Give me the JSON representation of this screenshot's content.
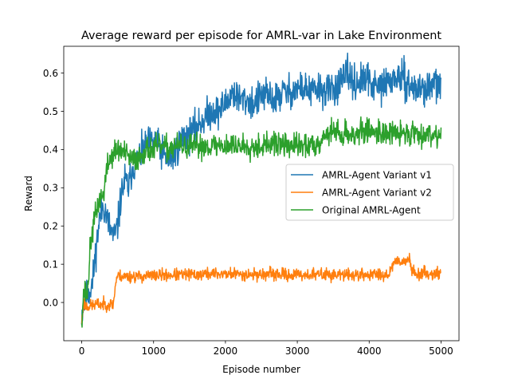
{
  "chart_data": {
    "type": "line",
    "title": "Average reward per episode for AMRL-var in Lake Environment",
    "xlabel": "Episode number",
    "ylabel": "Reward",
    "xlim": [
      -250,
      5250
    ],
    "ylim": [
      -0.1,
      0.67
    ],
    "xticks": [
      0,
      1000,
      2000,
      3000,
      4000,
      5000
    ],
    "yticks": [
      0.0,
      0.1,
      0.2,
      0.3,
      0.4,
      0.5,
      0.6
    ],
    "ytick_labels": [
      "0.0",
      "0.1",
      "0.2",
      "0.3",
      "0.4",
      "0.5",
      "0.6"
    ],
    "grid": false,
    "legend_position": "center-right",
    "series": [
      {
        "name": "AMRL-Agent Variant v1",
        "color": "#1f77b4",
        "noise": 0.022,
        "seed": 11,
        "points": [
          [
            0,
            -0.03
          ],
          [
            50,
            0.01
          ],
          [
            100,
            0.03
          ],
          [
            150,
            0.05
          ],
          [
            200,
            0.14
          ],
          [
            250,
            0.22
          ],
          [
            300,
            0.26
          ],
          [
            350,
            0.22
          ],
          [
            400,
            0.19
          ],
          [
            450,
            0.17
          ],
          [
            500,
            0.2
          ],
          [
            550,
            0.28
          ],
          [
            600,
            0.32
          ],
          [
            650,
            0.3
          ],
          [
            700,
            0.35
          ],
          [
            800,
            0.38
          ],
          [
            900,
            0.41
          ],
          [
            1000,
            0.42
          ],
          [
            1100,
            0.4
          ],
          [
            1200,
            0.37
          ],
          [
            1300,
            0.39
          ],
          [
            1400,
            0.43
          ],
          [
            1500,
            0.44
          ],
          [
            1600,
            0.46
          ],
          [
            1700,
            0.48
          ],
          [
            1800,
            0.5
          ],
          [
            1900,
            0.5
          ],
          [
            2000,
            0.52
          ],
          [
            2100,
            0.55
          ],
          [
            2200,
            0.53
          ],
          [
            2300,
            0.53
          ],
          [
            2400,
            0.52
          ],
          [
            2500,
            0.54
          ],
          [
            2600,
            0.54
          ],
          [
            2700,
            0.53
          ],
          [
            2800,
            0.55
          ],
          [
            2900,
            0.55
          ],
          [
            3000,
            0.56
          ],
          [
            3100,
            0.56
          ],
          [
            3200,
            0.55
          ],
          [
            3300,
            0.56
          ],
          [
            3400,
            0.55
          ],
          [
            3500,
            0.56
          ],
          [
            3600,
            0.57
          ],
          [
            3700,
            0.6
          ],
          [
            3800,
            0.57
          ],
          [
            3900,
            0.58
          ],
          [
            4000,
            0.58
          ],
          [
            4100,
            0.56
          ],
          [
            4200,
            0.57
          ],
          [
            4300,
            0.58
          ],
          [
            4400,
            0.59
          ],
          [
            4500,
            0.58
          ],
          [
            4600,
            0.56
          ],
          [
            4700,
            0.56
          ],
          [
            4800,
            0.56
          ],
          [
            4900,
            0.57
          ],
          [
            5000,
            0.57
          ]
        ]
      },
      {
        "name": "AMRL-Agent Variant v2",
        "color": "#ff7f0e",
        "noise": 0.008,
        "seed": 23,
        "points": [
          [
            0,
            -0.05
          ],
          [
            30,
            0.0
          ],
          [
            60,
            -0.01
          ],
          [
            100,
            -0.01
          ],
          [
            200,
            -0.005
          ],
          [
            300,
            -0.005
          ],
          [
            400,
            -0.005
          ],
          [
            440,
            -0.005
          ],
          [
            460,
            0.03
          ],
          [
            480,
            0.06
          ],
          [
            500,
            0.07
          ],
          [
            600,
            0.068
          ],
          [
            800,
            0.068
          ],
          [
            1000,
            0.07
          ],
          [
            1200,
            0.072
          ],
          [
            1400,
            0.072
          ],
          [
            1600,
            0.073
          ],
          [
            1800,
            0.075
          ],
          [
            2000,
            0.075
          ],
          [
            2200,
            0.074
          ],
          [
            2400,
            0.073
          ],
          [
            2600,
            0.074
          ],
          [
            2800,
            0.073
          ],
          [
            3000,
            0.072
          ],
          [
            3200,
            0.073
          ],
          [
            3400,
            0.073
          ],
          [
            3600,
            0.072
          ],
          [
            3800,
            0.072
          ],
          [
            4000,
            0.073
          ],
          [
            4200,
            0.074
          ],
          [
            4280,
            0.074
          ],
          [
            4320,
            0.1
          ],
          [
            4400,
            0.11
          ],
          [
            4480,
            0.108
          ],
          [
            4560,
            0.112
          ],
          [
            4600,
            0.08
          ],
          [
            4700,
            0.075
          ],
          [
            4800,
            0.077
          ],
          [
            4900,
            0.076
          ],
          [
            5000,
            0.077
          ]
        ]
      },
      {
        "name": "Original AMRL-Agent",
        "color": "#2ca02c",
        "noise": 0.016,
        "seed": 37,
        "points": [
          [
            0,
            -0.04
          ],
          [
            30,
            0.03
          ],
          [
            80,
            0.02
          ],
          [
            120,
            0.15
          ],
          [
            180,
            0.22
          ],
          [
            250,
            0.27
          ],
          [
            300,
            0.28
          ],
          [
            350,
            0.35
          ],
          [
            400,
            0.38
          ],
          [
            500,
            0.4
          ],
          [
            600,
            0.39
          ],
          [
            700,
            0.37
          ],
          [
            800,
            0.38
          ],
          [
            900,
            0.4
          ],
          [
            1000,
            0.4
          ],
          [
            1100,
            0.41
          ],
          [
            1200,
            0.4
          ],
          [
            1300,
            0.41
          ],
          [
            1500,
            0.405
          ],
          [
            1700,
            0.41
          ],
          [
            1900,
            0.41
          ],
          [
            2100,
            0.41
          ],
          [
            2300,
            0.41
          ],
          [
            2500,
            0.41
          ],
          [
            2700,
            0.415
          ],
          [
            2900,
            0.41
          ],
          [
            3100,
            0.41
          ],
          [
            3200,
            0.41
          ],
          [
            3300,
            0.42
          ],
          [
            3400,
            0.44
          ],
          [
            3500,
            0.45
          ],
          [
            3600,
            0.44
          ],
          [
            3800,
            0.44
          ],
          [
            4000,
            0.45
          ],
          [
            4200,
            0.445
          ],
          [
            4400,
            0.44
          ],
          [
            4600,
            0.445
          ],
          [
            4800,
            0.44
          ],
          [
            5000,
            0.44
          ]
        ]
      }
    ]
  }
}
